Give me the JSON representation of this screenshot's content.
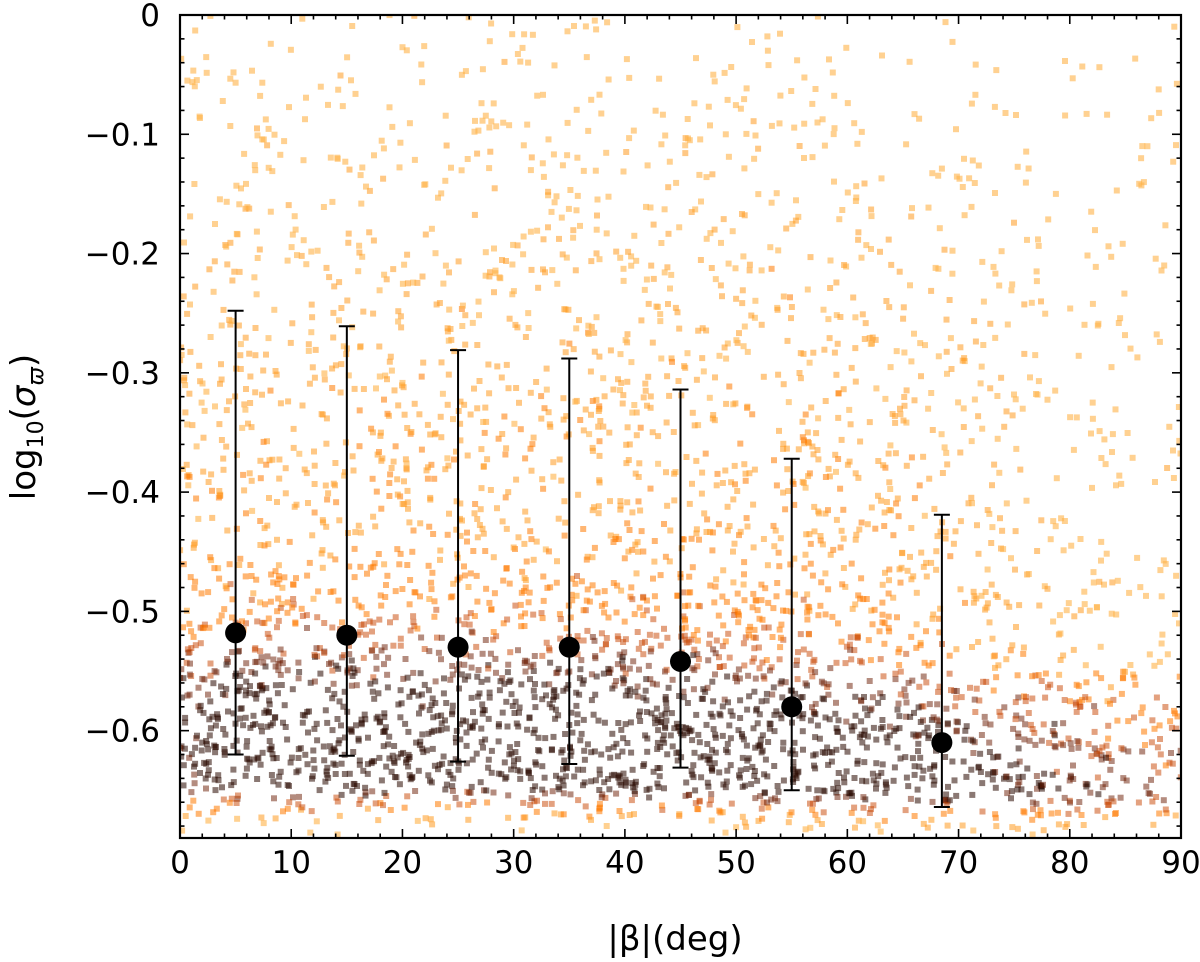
{
  "chart_data": {
    "type": "scatter",
    "title": "",
    "xlabel": "|β|(deg)",
    "ylabel": {
      "base": "log",
      "base_sub": "10",
      "open": "(",
      "sigma": "σ",
      "sigma_sub": "ϖ",
      "close": ")"
    },
    "xlim": [
      0,
      90
    ],
    "ylim": [
      -0.69,
      0.0
    ],
    "x_ticks": [
      0,
      10,
      20,
      30,
      40,
      50,
      60,
      70,
      80,
      90
    ],
    "x_tick_labels": [
      "0",
      "10",
      "20",
      "30",
      "40",
      "50",
      "60",
      "70",
      "80",
      "90"
    ],
    "y_ticks": [
      0,
      -0.1,
      -0.2,
      -0.3,
      -0.4,
      -0.5,
      -0.6
    ],
    "y_tick_labels": [
      "0",
      "−0.1",
      "−0.2",
      "−0.3",
      "−0.4",
      "−0.5",
      "−0.6"
    ],
    "grid": false,
    "legend": false,
    "colors": {
      "scatter_light": "#ffb347",
      "scatter_mid": "#ff8000",
      "scatter_dark": "#2a0a00",
      "binned_marker": "#000000"
    },
    "background_density": {
      "description": "dense cloud of stars; density peaks near y≈-0.62 to -0.66 across all x, thinning above and beyond x≈70",
      "x_range": [
        0,
        90
      ],
      "y_range": [
        -0.69,
        0.0
      ]
    },
    "series": [
      {
        "points": [
          {
            "x": 5,
            "y": -0.518,
            "err_low": -0.62,
            "err_high": -0.248
          },
          {
            "x": 15,
            "y": -0.52,
            "err_low": -0.621,
            "err_high": -0.261
          },
          {
            "x": 25,
            "y": -0.53,
            "err_low": -0.626,
            "err_high": -0.281
          },
          {
            "x": 35,
            "y": -0.53,
            "err_low": -0.628,
            "err_high": -0.288
          },
          {
            "x": 45,
            "y": -0.542,
            "err_low": -0.631,
            "err_high": -0.314
          },
          {
            "x": 55,
            "y": -0.58,
            "err_low": -0.65,
            "err_high": -0.372
          },
          {
            "x": 68.5,
            "y": -0.61,
            "err_low": -0.664,
            "err_high": -0.419
          }
        ]
      }
    ]
  }
}
